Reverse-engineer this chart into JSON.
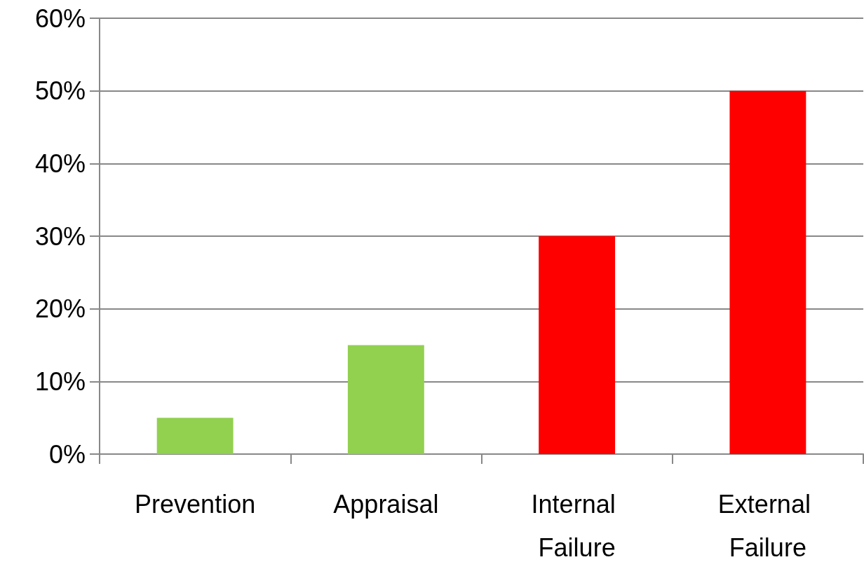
{
  "chart_data": {
    "type": "bar",
    "categories": [
      "Prevention",
      "Appraisal",
      "Internal Failure",
      "External Failure"
    ],
    "values": [
      5,
      15,
      30,
      50
    ],
    "colors": [
      "#92d050",
      "#92d050",
      "#ff0000",
      "#ff0000"
    ],
    "ylim": [
      0,
      60
    ],
    "yticks": [
      {
        "value": 0,
        "label": "0%"
      },
      {
        "value": 10,
        "label": "10%"
      },
      {
        "value": 20,
        "label": "20%"
      },
      {
        "value": 30,
        "label": "30%"
      },
      {
        "value": 40,
        "label": "40%"
      },
      {
        "value": 50,
        "label": "50%"
      },
      {
        "value": 60,
        "label": "60%"
      }
    ],
    "grid": true
  }
}
